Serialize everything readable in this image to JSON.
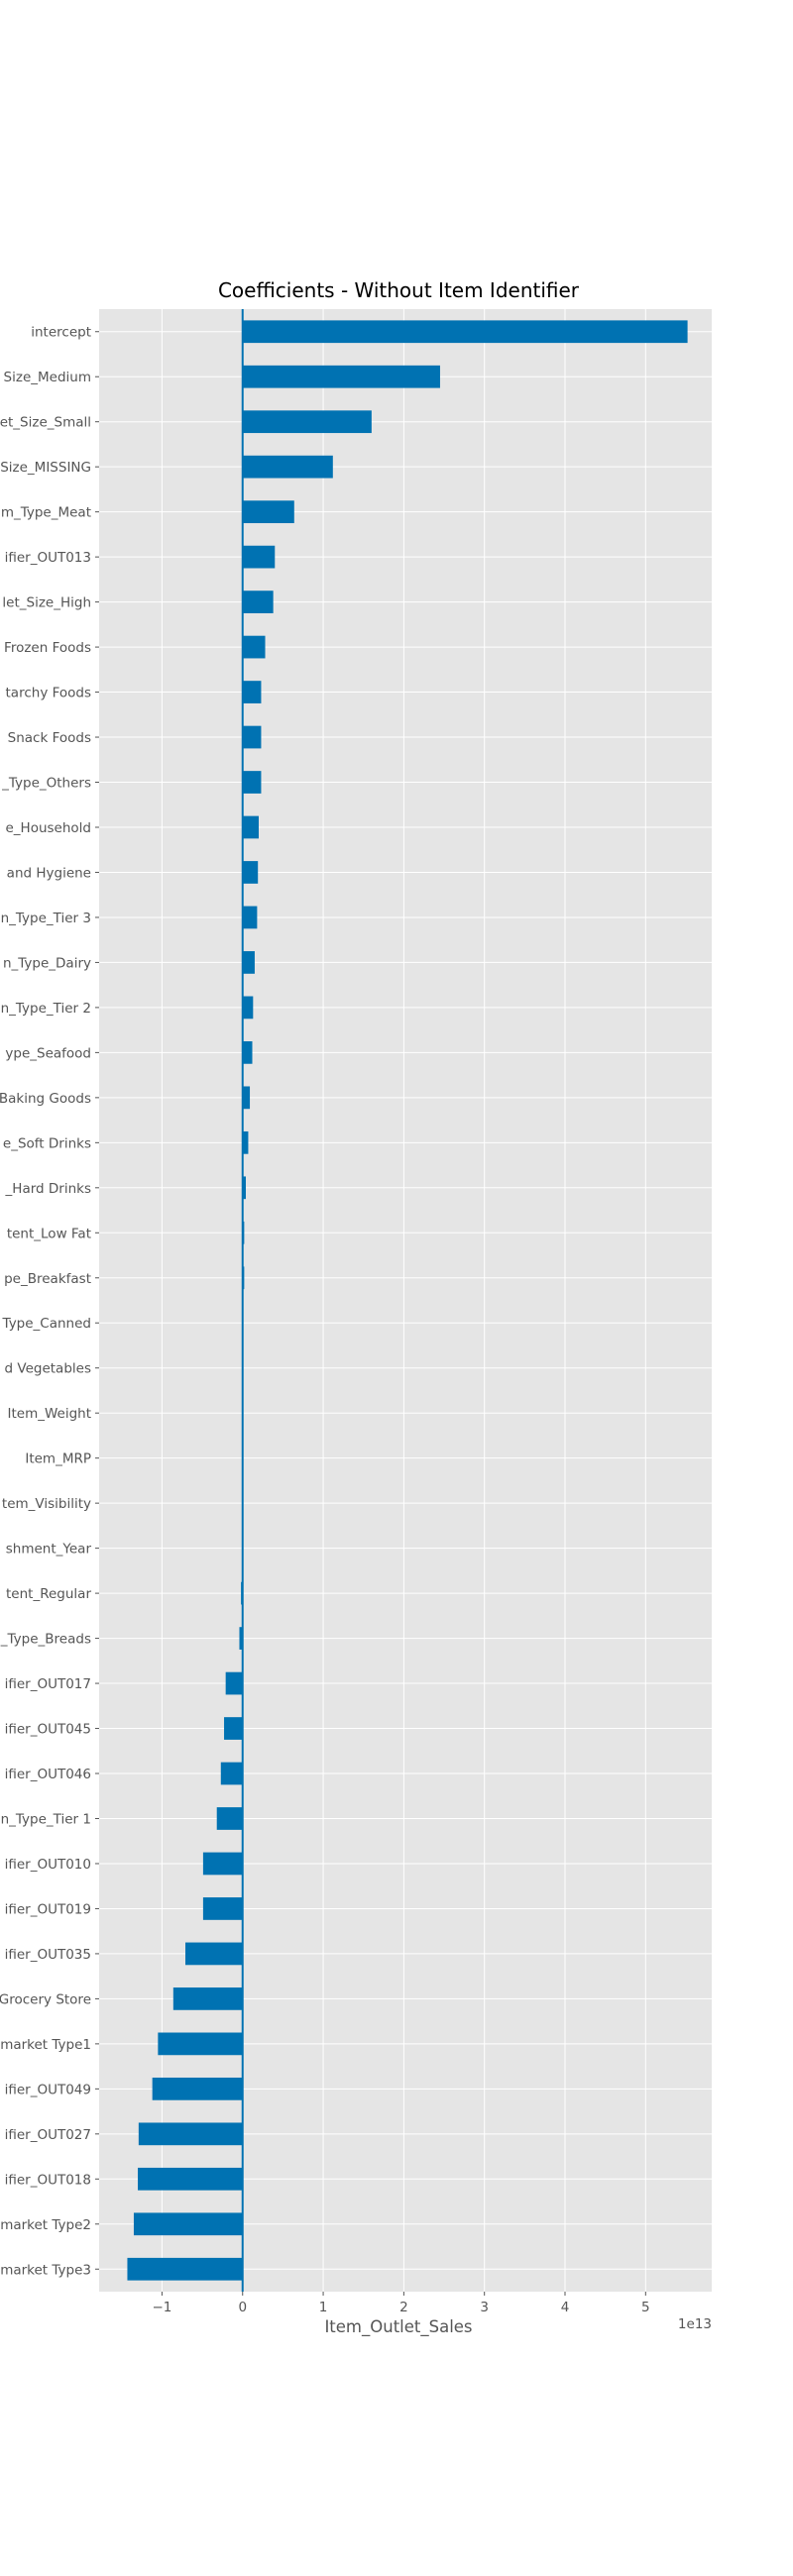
{
  "chart_data": {
    "type": "bar",
    "orientation": "horizontal",
    "title": "Coefficients - Without Item Identifier",
    "xlabel": "Item_Outlet_Sales",
    "ylabel": "",
    "x_offset_label": "1e13",
    "xlim": [
      -1.78,
      5.82
    ],
    "x_ticks": [
      -1,
      0,
      1,
      2,
      3,
      4,
      5
    ],
    "x_tick_labels": [
      "−1",
      "0",
      "1",
      "2",
      "3",
      "4",
      "5"
    ],
    "grid": true,
    "legend": "none",
    "colors": {
      "bar": "#0072b2",
      "plot_bg": "#e5e5e5",
      "grid": "#ffffff",
      "zero_line": "#0072b2"
    },
    "categories": [
      "intercept",
      "Size_Medium",
      "et_Size_Small",
      "Size_MISSING",
      "m_Type_Meat",
      "ifier_OUT013",
      "let_Size_High",
      "Frozen Foods",
      "tarchy Foods",
      "Snack Foods",
      "_Type_Others",
      "e_Household",
      " and Hygiene",
      "n_Type_Tier 3",
      "n_Type_Dairy",
      "n_Type_Tier 2",
      "ype_Seafood",
      "Baking Goods",
      "e_Soft Drinks",
      "_Hard Drinks",
      "tent_Low Fat",
      "pe_Breakfast",
      "Type_Canned",
      "d Vegetables",
      "Item_Weight",
      "Item_MRP",
      "tem_Visibility",
      "shment_Year",
      "tent_Regular",
      "_Type_Breads",
      "ifier_OUT017",
      "ifier_OUT045",
      "ifier_OUT046",
      "n_Type_Tier 1",
      "ifier_OUT010",
      "ifier_OUT019",
      "ifier_OUT035",
      "Grocery Store",
      "market Type1",
      "ifier_OUT049",
      "ifier_OUT027",
      "ifier_OUT018",
      "market Type2",
      "market Type3"
    ],
    "values": [
      5.52,
      2.45,
      1.6,
      1.12,
      0.64,
      0.4,
      0.38,
      0.28,
      0.23,
      0.23,
      0.23,
      0.2,
      0.19,
      0.18,
      0.15,
      0.13,
      0.12,
      0.09,
      0.07,
      0.04,
      0.02,
      0.02,
      0.0,
      0.0,
      0.0,
      0.0,
      0.0,
      0.0,
      -0.02,
      -0.04,
      -0.21,
      -0.23,
      -0.27,
      -0.32,
      -0.49,
      -0.49,
      -0.71,
      -0.86,
      -1.05,
      -1.12,
      -1.29,
      -1.3,
      -1.35,
      -1.43
    ]
  }
}
